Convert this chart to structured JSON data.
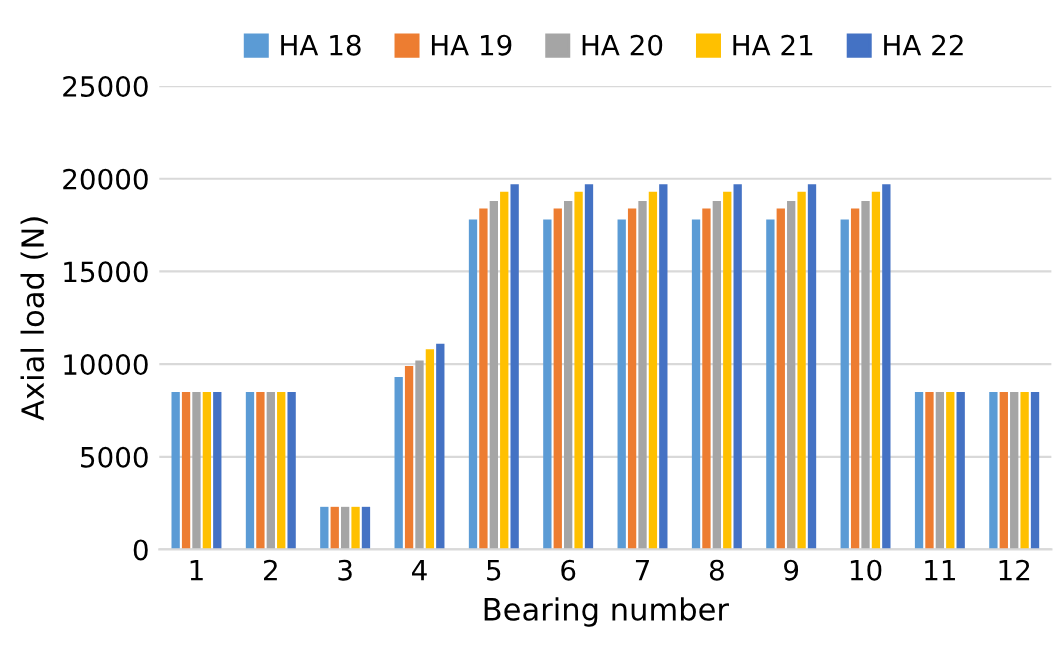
{
  "chart_data": {
    "type": "bar",
    "xlabel": "Bearing number",
    "ylabel": "Axial load (N)",
    "categories": [
      "1",
      "2",
      "3",
      "4",
      "5",
      "6",
      "7",
      "8",
      "9",
      "10",
      "11",
      "12"
    ],
    "series": [
      {
        "name": "HA 18",
        "color": "#5b9bd5",
        "values": [
          8500,
          8500,
          2300,
          9300,
          17800,
          17800,
          17800,
          17800,
          17800,
          17800,
          8500,
          8500
        ]
      },
      {
        "name": "HA 19",
        "color": "#ed7d31",
        "values": [
          8500,
          8500,
          2300,
          9900,
          18400,
          18400,
          18400,
          18400,
          18400,
          18400,
          8500,
          8500
        ]
      },
      {
        "name": "HA 20",
        "color": "#a5a5a5",
        "values": [
          8500,
          8500,
          2300,
          10200,
          18800,
          18800,
          18800,
          18800,
          18800,
          18800,
          8500,
          8500
        ]
      },
      {
        "name": "HA 21",
        "color": "#ffc000",
        "values": [
          8500,
          8500,
          2300,
          10800,
          19300,
          19300,
          19300,
          19300,
          19300,
          19300,
          8500,
          8500
        ]
      },
      {
        "name": "HA 22",
        "color": "#4472c4",
        "values": [
          8500,
          8500,
          2300,
          11100,
          19700,
          19700,
          19700,
          19700,
          19700,
          19700,
          8500,
          8500
        ]
      }
    ],
    "ylim": [
      0,
      25000
    ],
    "yticks": [
      0,
      5000,
      10000,
      15000,
      20000,
      25000
    ],
    "grid": "y",
    "legend": "top"
  }
}
